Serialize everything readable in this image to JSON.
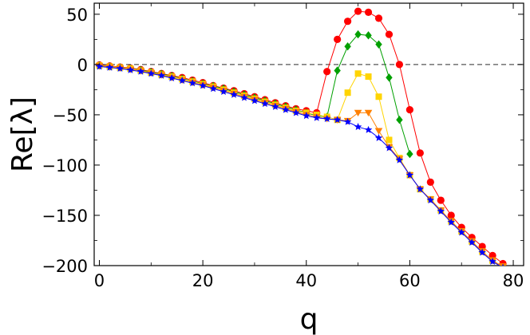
{
  "chart_data": {
    "type": "scatter",
    "xlabel": "q",
    "ylabel": "Re[λ]",
    "xlim": [
      -1,
      82
    ],
    "ylim": [
      -200,
      61
    ],
    "x_ticks": [
      0,
      20,
      40,
      60,
      80
    ],
    "x_tick_labels": [
      "0",
      "20",
      "40",
      "60",
      "80"
    ],
    "y_ticks": [
      -200,
      -150,
      -100,
      -50,
      0,
      50
    ],
    "y_tick_labels": [
      "−200",
      "−150",
      "−100",
      "−50",
      "0",
      "50"
    ],
    "reference_line": {
      "y": 0,
      "style": "dashed"
    },
    "grid": false,
    "legend": "none",
    "series": [
      {
        "color": "#ff0000",
        "marker": "circle",
        "x": [
          0,
          2,
          4,
          6,
          8,
          10,
          12,
          14,
          16,
          18,
          20,
          22,
          24,
          26,
          28,
          30,
          32,
          34,
          36,
          38,
          40,
          42,
          44,
          46,
          48,
          50,
          52,
          54,
          56,
          58,
          60,
          62,
          64,
          66,
          68,
          70,
          72,
          74,
          76,
          78,
          80
        ],
        "y": [
          -0.5,
          -1.5,
          -2.5,
          -3.5,
          -5,
          -7,
          -9,
          -11,
          -13,
          -15.5,
          -18,
          -21,
          -23.5,
          -26,
          -29,
          -32,
          -35,
          -38,
          -41,
          -44,
          -46,
          -48,
          -7,
          25,
          43,
          53,
          52,
          46,
          30,
          0,
          -45,
          -88,
          -117,
          -135,
          -150,
          -162,
          -172,
          -181,
          -190,
          -198,
          -205
        ]
      },
      {
        "color": "#00a000",
        "marker": "diamond",
        "x": [
          0,
          2,
          4,
          6,
          8,
          10,
          12,
          14,
          16,
          18,
          20,
          22,
          24,
          26,
          28,
          30,
          32,
          34,
          36,
          38,
          40,
          42,
          44,
          46,
          48,
          50,
          52,
          54,
          56,
          58,
          60
        ],
        "y": [
          -1,
          -2,
          -3,
          -4,
          -5.5,
          -7.5,
          -9.5,
          -11.5,
          -14,
          -16.5,
          -19,
          -21.5,
          -24,
          -27,
          -30,
          -33,
          -36,
          -39,
          -42,
          -45,
          -48,
          -51,
          -52,
          -6,
          18,
          30,
          29,
          20,
          -13,
          -55,
          -89
        ]
      },
      {
        "color": "#ffd400",
        "marker": "square",
        "x": [
          0,
          2,
          4,
          6,
          8,
          10,
          12,
          14,
          16,
          18,
          20,
          22,
          24,
          26,
          28,
          30,
          32,
          34,
          36,
          38,
          40,
          42,
          44,
          46,
          48,
          50,
          52,
          54,
          56,
          58,
          60,
          62,
          64,
          66,
          68,
          70,
          72,
          74,
          76,
          78,
          80
        ],
        "y": [
          -1,
          -2,
          -3,
          -4,
          -6,
          -8,
          -10,
          -12,
          -14.5,
          -17,
          -19.5,
          -22,
          -25,
          -28,
          -31,
          -34,
          -37,
          -40,
          -43,
          -46,
          -48,
          -50,
          -52,
          -55,
          -28,
          -9,
          -12,
          -32,
          -75,
          -93,
          -110,
          -124,
          -134,
          -145,
          -156,
          -166,
          -176,
          -186,
          -195,
          -201,
          -206
        ]
      },
      {
        "color": "#ff8000",
        "marker": "triangle-down",
        "x": [
          0,
          2,
          4,
          6,
          8,
          10,
          12,
          14,
          16,
          18,
          20,
          22,
          24,
          26,
          28,
          30,
          32,
          34,
          36,
          38,
          40,
          42,
          44,
          46,
          48,
          50,
          52,
          54,
          56,
          58,
          60,
          62,
          64,
          66,
          68,
          70,
          72,
          74,
          76,
          78,
          80
        ],
        "y": [
          -1.5,
          -2.5,
          -3.5,
          -5,
          -6.5,
          -8.5,
          -10.5,
          -13,
          -15.5,
          -18,
          -20.5,
          -23,
          -26,
          -29,
          -32,
          -35,
          -38,
          -41,
          -44,
          -47,
          -50,
          -52,
          -54,
          -55,
          -56,
          -48,
          -48,
          -66,
          -82,
          -94,
          -110,
          -124,
          -134,
          -145,
          -156,
          -166,
          -176,
          -186,
          -195,
          -201,
          -206
        ]
      },
      {
        "color": "#0000ff",
        "marker": "star",
        "x": [
          0,
          2,
          4,
          6,
          8,
          10,
          12,
          14,
          16,
          18,
          20,
          22,
          24,
          26,
          28,
          30,
          32,
          34,
          36,
          38,
          40,
          42,
          44,
          46,
          48,
          50,
          52,
          54,
          56,
          58,
          60,
          62,
          64,
          66,
          68,
          70,
          72,
          74,
          76,
          78,
          80
        ],
        "y": [
          -2,
          -3,
          -4,
          -5.5,
          -7,
          -9,
          -11,
          -13.5,
          -16,
          -18.5,
          -21,
          -24,
          -27,
          -30,
          -33,
          -36,
          -39,
          -42,
          -45,
          -48,
          -51,
          -53,
          -54,
          -55,
          -57,
          -62,
          -65,
          -73,
          -83,
          -95,
          -110,
          -124,
          -135,
          -146,
          -157,
          -167,
          -177,
          -187,
          -196,
          -202,
          -207
        ]
      }
    ]
  }
}
